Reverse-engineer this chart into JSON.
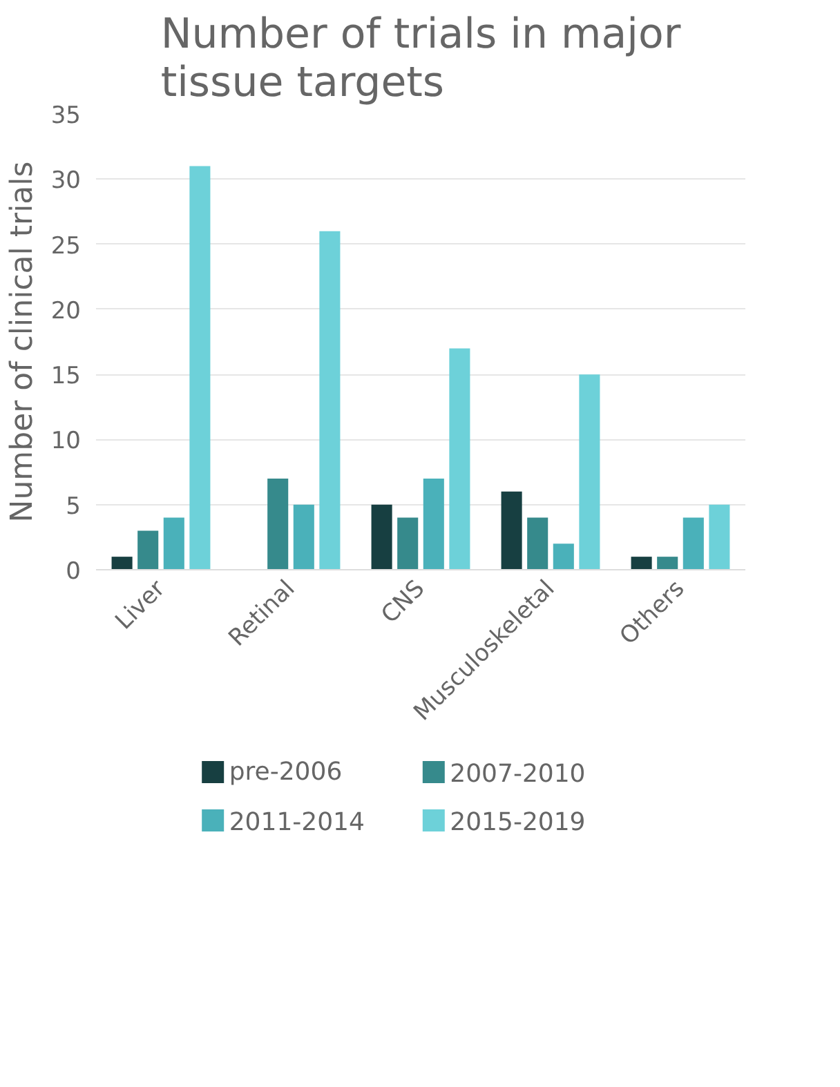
{
  "chart_data": {
    "type": "bar",
    "title": "Number of trials in major tissue targets",
    "ylabel": "Number of clinical trials",
    "categories": [
      "Liver",
      "Retinal",
      "CNS",
      "Musculoskeletal",
      "Others"
    ],
    "series": [
      {
        "name": "pre-2006",
        "color": "#173f41",
        "values": [
          1,
          0,
          5,
          6,
          1
        ]
      },
      {
        "name": "2007-2010",
        "color": "#368a8c",
        "values": [
          3,
          7,
          4,
          4,
          1
        ]
      },
      {
        "name": "2011-2014",
        "color": "#4ab1ba",
        "values": [
          4,
          5,
          7,
          2,
          4
        ]
      },
      {
        "name": "2015-2019",
        "color": "#6dd1d9",
        "values": [
          31,
          26,
          17,
          15,
          5
        ]
      }
    ],
    "ylim": [
      0,
      35
    ],
    "yticks": [
      0,
      5,
      10,
      15,
      20,
      25,
      30,
      35
    ],
    "grid": "y",
    "legend": "bottom"
  }
}
